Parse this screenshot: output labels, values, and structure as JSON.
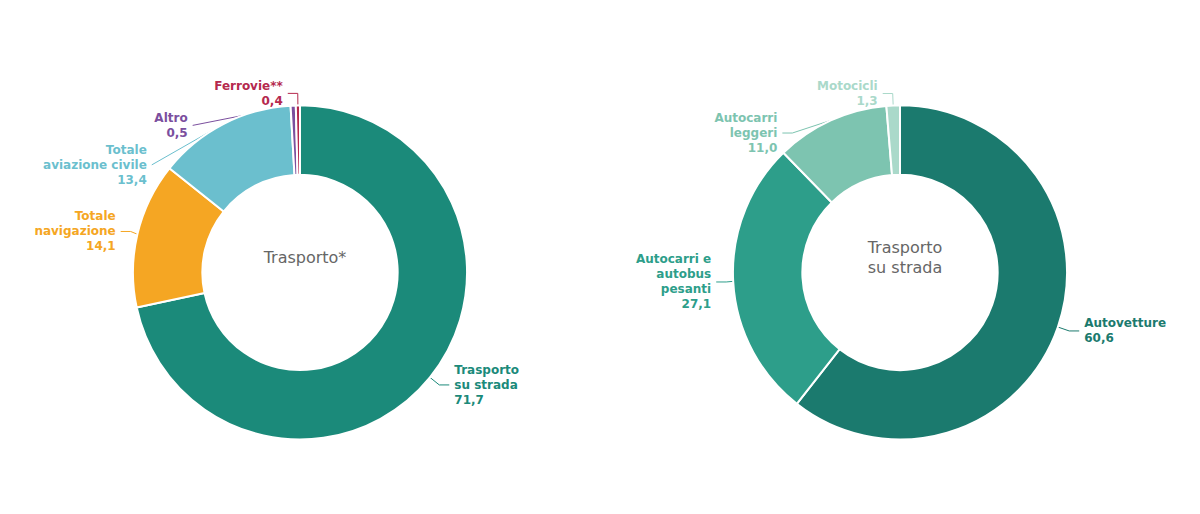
{
  "chart_data": [
    {
      "type": "pie",
      "title": "Trasporto*",
      "categories": [
        "Trasporto\nsu strada",
        "Totale\nnavigazione",
        "Totale\naviazione civile",
        "Altro",
        "Ferrovie**"
      ],
      "values": [
        71.7,
        14.1,
        13.4,
        0.5,
        0.4
      ],
      "value_labels": [
        "71,7",
        "14,1",
        "13,4",
        "0,5",
        "0,4"
      ],
      "colors": [
        "#1b8a7a",
        "#f5a623",
        "#6bbfce",
        "#7b4f9e",
        "#b5294e"
      ],
      "data_labels": true
    },
    {
      "type": "pie",
      "title": "Trasporto\nsu strada",
      "categories": [
        "Autovetture",
        "Autocarri e\nautobus\npesanti",
        "Autocarri\nleggeri",
        "Motocicli"
      ],
      "values": [
        60.6,
        27.1,
        11.0,
        1.3
      ],
      "value_labels": [
        "60,6",
        "27,1",
        "11,0",
        "1,3"
      ],
      "colors": [
        "#1b7a6e",
        "#2d9e8a",
        "#7dc4b0",
        "#aad9ca"
      ],
      "data_labels": true
    }
  ]
}
